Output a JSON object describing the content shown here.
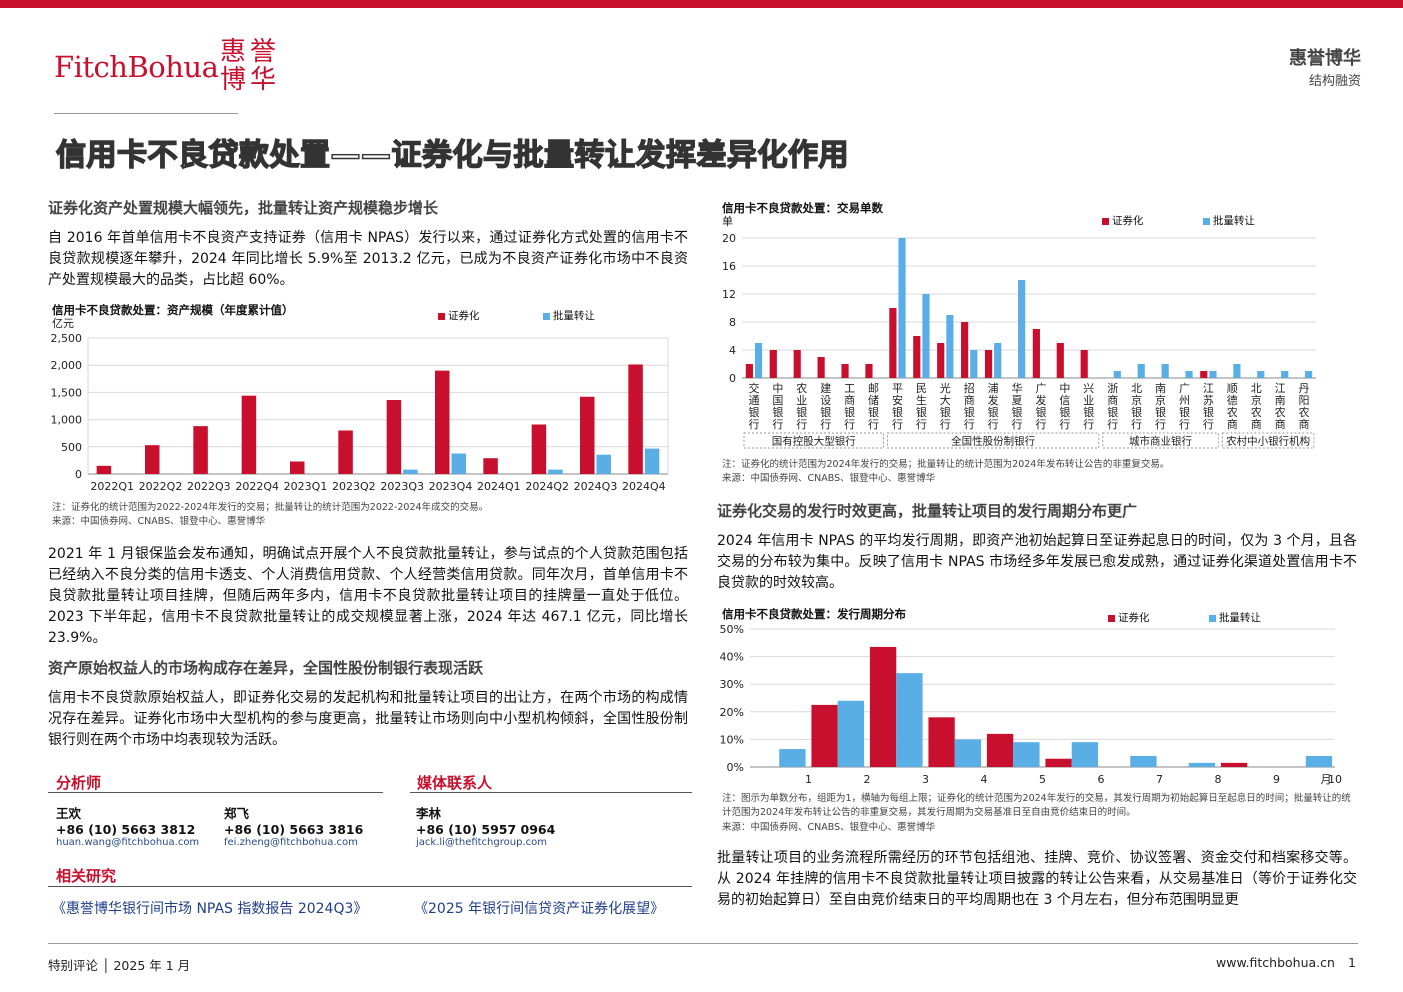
{
  "header": {
    "logo_text": "FitchBohua",
    "logo_cn_1": "惠誉",
    "logo_cn_2": "博华",
    "brand": "惠誉博华",
    "sector": "结构融资",
    "title": "信用卡不良贷款处置——证券化与批量转让发挥差异化作用"
  },
  "colors": {
    "securitization": "#c8102e",
    "bulk": "#5aaee6",
    "accent": "#c8102e"
  },
  "left": {
    "s1_heading": "证券化资产处置规模大幅领先，批量转让资产规模稳步增长",
    "s1_para": "自 2016 年首单信用卡不良资产支持证券（信用卡 NPAS）发行以来，通过证券化方式处置的信用卡不良贷款规模逐年攀升，2024 年同比增长 5.9%至 2013.2 亿元，已成为不良资产证券化市场中不良资产处置规模最大的品类，占比超 60%。",
    "para2": "2021 年 1 月银保监会发布通知，明确试点开展个人不良贷款批量转让，参与试点的个人贷款范围包括已经纳入不良分类的信用卡透支、个人消费信用贷款、个人经营类信用贷款。同年次月，首单信用卡不良贷款批量转让项目挂牌，但随后两年多内，信用卡不良贷款批量转让项目的挂牌量一直处于低位。2023 下半年起，信用卡不良贷款批量转让的成交规模显著上涨，2024 年达 467.1 亿元，同比增长 23.9%。",
    "s2_heading": "资产原始权益人的市场构成存在差异，全国性股份制银行表现活跃",
    "s2_para": "信用卡不良贷款原始权益人，即证券化交易的发起机构和批量转让项目的出让方，在两个市场的构成情况存在差异。证券化市场中大型机构的参与度更高，批量转让市场则向中小型机构倾斜，全国性股份制银行则在两个市场中均表现较为活跃。"
  },
  "right": {
    "s3_heading": "证券化交易的发行时效更高，批量转让项目的发行周期分布更广",
    "s3_para": "2024 年信用卡 NPAS 的平均发行周期，即资产池初始起算日至证券起息日的时间，仅为 3 个月，且各交易的分布较为集中。反映了信用卡 NPAS 市场经多年发展已愈发成熟，通过证券化渠道处置信用卡不良贷款的时效较高。",
    "bottom_para": "批量转让项目的业务流程所需经历的环节包括组池、挂牌、竞价、协议签署、资金交付和档案移交等。从 2024 年挂牌的信用卡不良贷款批量转让项目披露的转让公告来看，从交易基准日（等价于证券化交易的初始起算日）至自由竞价结束日的平均周期也在 3 个月左右，但分布范围明显更"
  },
  "legend": {
    "securitization": "证券化",
    "bulk": "批量转让"
  },
  "chart_data": [
    {
      "type": "bar",
      "title": "信用卡不良贷款处置：资产规模（年度累计值）",
      "ylabel": "亿元",
      "ylim": [
        0,
        2500
      ],
      "yticks": [
        "0",
        "500",
        "1,000",
        "1,500",
        "2,000",
        "2,500"
      ],
      "categories": [
        "2022Q1",
        "2022Q2",
        "2022Q3",
        "2022Q4",
        "2023Q1",
        "2023Q2",
        "2023Q3",
        "2023Q4",
        "2024Q1",
        "2024Q2",
        "2024Q3",
        "2024Q4"
      ],
      "series": [
        {
          "name": "证券化",
          "values": [
            150,
            530,
            880,
            1440,
            230,
            800,
            1360,
            1900,
            290,
            910,
            1420,
            2013.2
          ]
        },
        {
          "name": "批量转让",
          "values": [
            0,
            0,
            0,
            0,
            0,
            0,
            80,
            377,
            0,
            80,
            355,
            467.1
          ]
        }
      ],
      "note": "注：证券化的统计范围为2022-2024年发行的交易；批量转让的统计范围为2022-2024年成交的交易。",
      "source": "来源：中国债券网、CNABS、银登中心、惠誉博华",
      "grid": true,
      "legend_position": "top-right"
    },
    {
      "type": "bar",
      "title": "信用卡不良贷款处置：交易单数",
      "ylabel": "单",
      "ylim": [
        0,
        20
      ],
      "yticks": [
        "0",
        "4",
        "8",
        "12",
        "16",
        "20"
      ],
      "categories": [
        "交通银行",
        "中国银行",
        "农业银行",
        "建设银行",
        "工商银行",
        "邮储银行",
        "平安银行",
        "民生银行",
        "光大银行",
        "招商银行",
        "浦发银行",
        "华夏银行",
        "广发银行",
        "中信银行",
        "兴业银行",
        "浙商银行",
        "北京银行",
        "南京银行",
        "广州银行",
        "江苏银行",
        "顺德农商",
        "北京农商",
        "江南农商",
        "丹阳农商"
      ],
      "series": [
        {
          "name": "证券化",
          "values": [
            2,
            4,
            4,
            3,
            2,
            2,
            10,
            6,
            5,
            8,
            4,
            0,
            7,
            5,
            4,
            0,
            0,
            0,
            0,
            1,
            0,
            0,
            0,
            0
          ]
        },
        {
          "name": "批量转让",
          "values": [
            5,
            0,
            0,
            0,
            0,
            0,
            20,
            12,
            9,
            4,
            5,
            14,
            0,
            0,
            0,
            1,
            2,
            2,
            1,
            1,
            2,
            1,
            1,
            1
          ]
        }
      ],
      "groups": [
        {
          "label": "国有控股大型银行",
          "span": 6
        },
        {
          "label": "全国性股份制银行",
          "span": 9
        },
        {
          "label": "城市商业银行",
          "span": 5
        },
        {
          "label": "农村中小银行机构",
          "span": 4
        }
      ],
      "note": "注：证券化的统计范围为2024年发行的交易；批量转让的统计范围为2024年发布转让公告的非重复交易。",
      "source": "来源：中国债券网、CNABS、银登中心、惠誉博华",
      "grid": true,
      "legend_position": "top-right"
    },
    {
      "type": "bar",
      "title": "信用卡不良贷款处置：发行周期分布",
      "xlabel": "月",
      "ylim": [
        0,
        50
      ],
      "yticks": [
        "0%",
        "10%",
        "20%",
        "30%",
        "40%",
        "50%"
      ],
      "categories": [
        "1",
        "2",
        "3",
        "4",
        "5",
        "6",
        "7",
        "8",
        "9",
        "10"
      ],
      "series": [
        {
          "name": "证券化",
          "values": [
            0,
            22.5,
            43.5,
            18,
            12,
            3,
            0,
            0,
            1.5,
            0
          ]
        },
        {
          "name": "批量转让",
          "values": [
            6.5,
            24,
            34,
            10,
            9,
            9,
            4,
            1.5,
            0,
            4
          ]
        }
      ],
      "note": "注：图示为单数分布，组距为1，横轴为每组上限；证券化的统计范围为2024年发行的交易，其发行周期为初始起算日至起息日的时间；批量转让的统计范围为2024年发布转让公告的非重复交易，其发行周期为交易基准日至自由竞价结束日的时间。",
      "source": "来源：中国债券网、CNABS、银登中心、惠誉博华",
      "grid": true,
      "legend_position": "top-right"
    }
  ],
  "contacts": {
    "analyst_heading": "分析师",
    "media_heading": "媒体联系人",
    "people": [
      {
        "name": "王欢",
        "phone": "+86 (10) 5663 3812",
        "email": "huan.wang@fitchbohua.com"
      },
      {
        "name": "郑飞",
        "phone": "+86 (10) 5663 3816",
        "email": "fei.zheng@fitchbohua.com"
      },
      {
        "name": "李林",
        "phone": "+86 (10) 5957 0964",
        "email": "jack.li@thefitchgroup.com"
      }
    ]
  },
  "research": {
    "heading": "相关研究",
    "links": [
      "《惠誉博华银行间市场 NPAS 指数报告 2024Q3》",
      "《2025 年银行间信贷资产证券化展望》"
    ]
  },
  "footer": {
    "left": "特别评论 │ 2025 年 1 月",
    "url": "www.fitchbohua.cn",
    "page": "1"
  }
}
